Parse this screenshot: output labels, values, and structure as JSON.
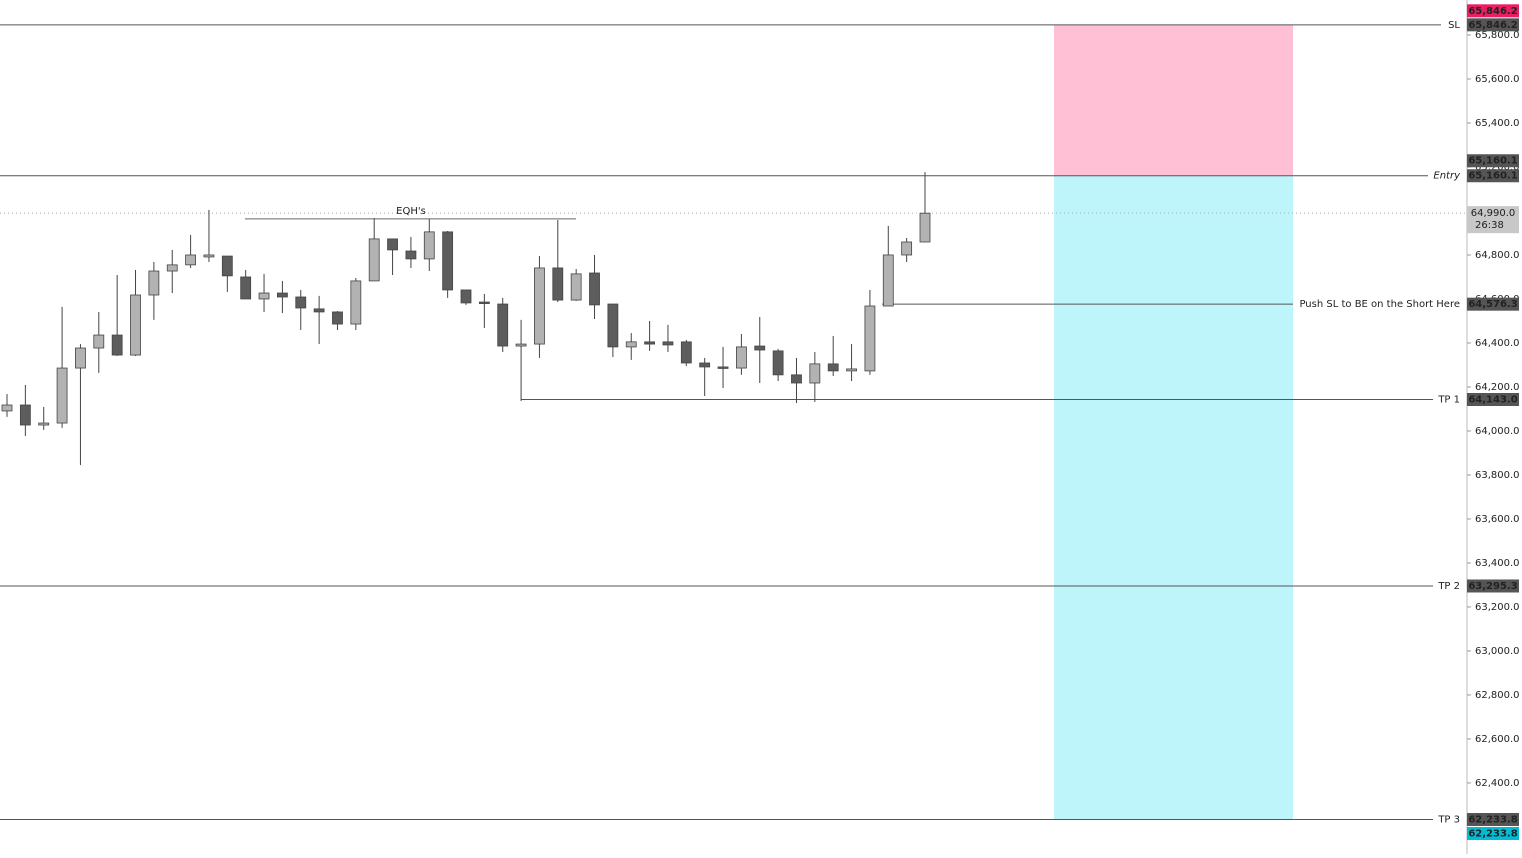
{
  "chart_data": {
    "type": "candlestick",
    "ylim": [
      62077,
      65959
    ],
    "yticks": [
      {
        "value": 62400,
        "label": "62,400.0"
      },
      {
        "value": 62600,
        "label": "62,600.0"
      },
      {
        "value": 62800,
        "label": "62,800.0"
      },
      {
        "value": 63000,
        "label": "63,000.0"
      },
      {
        "value": 63200,
        "label": "63,200.0"
      },
      {
        "value": 63400,
        "label": "63,400.0"
      },
      {
        "value": 63600,
        "label": "63,600.0"
      },
      {
        "value": 63800,
        "label": "63,800.0"
      },
      {
        "value": 64000,
        "label": "64,000.0"
      },
      {
        "value": 64200,
        "label": "64,200.0"
      },
      {
        "value": 64400,
        "label": "64,400.0"
      },
      {
        "value": 64600,
        "label": "64,600.0"
      },
      {
        "value": 64800,
        "label": "64,800.0"
      },
      {
        "value": 65000,
        "label": "65,000.0"
      },
      {
        "value": 65200,
        "label": "65,200.0"
      },
      {
        "value": 65400,
        "label": "65,400.0"
      },
      {
        "value": 65600,
        "label": "65,600.0"
      },
      {
        "value": 65800,
        "label": "65,800.0"
      }
    ],
    "up_color": "#b2b2b2",
    "down_color": "#5d5d5d",
    "open": [
      64091,
      64118,
      64027,
      64036,
      64286,
      64377,
      64436,
      64345,
      64618,
      64727,
      64755,
      64791,
      64795,
      64700,
      64600,
      64627,
      64609,
      64555,
      64541,
      64486,
      64682,
      64873,
      64818,
      64782,
      64905,
      64641,
      64586,
      64577,
      64386,
      64395,
      64741,
      64595,
      64718,
      64577,
      64382,
      64405,
      64405,
      64405,
      64309,
      64291,
      64286,
      64386,
      64364,
      64255,
      64218,
      64305,
      64273,
      64273,
      64568,
      64800,
      64859
    ],
    "high": [
      64168,
      64209,
      64109,
      64564,
      64395,
      64541,
      64709,
      64732,
      64768,
      64823,
      64891,
      65005,
      64795,
      64732,
      64714,
      64682,
      64641,
      64614,
      64545,
      64695,
      64968,
      64873,
      64882,
      64964,
      64909,
      64641,
      64623,
      64605,
      64505,
      64795,
      64959,
      64736,
      64800,
      64577,
      64445,
      64500,
      64482,
      64414,
      64332,
      64382,
      64441,
      64518,
      64373,
      64332,
      64359,
      64432,
      64395,
      64641,
      64932,
      64877,
      65177
    ],
    "low": [
      64064,
      63977,
      64005,
      64014,
      63845,
      64264,
      64341,
      64341,
      64505,
      64627,
      64741,
      64768,
      64632,
      64600,
      64541,
      64536,
      64459,
      64395,
      64459,
      64459,
      64682,
      64709,
      64741,
      64727,
      64605,
      64573,
      64468,
      64359,
      64136,
      64332,
      64586,
      64591,
      64509,
      64336,
      64323,
      64364,
      64359,
      64295,
      64159,
      64195,
      64255,
      64218,
      64227,
      64127,
      64132,
      64250,
      64227,
      64255,
      64568,
      64768,
      64859
    ],
    "close": [
      64118,
      64027,
      64036,
      64286,
      64377,
      64436,
      64345,
      64618,
      64727,
      64755,
      64800,
      64800,
      64705,
      64600,
      64627,
      64609,
      64559,
      64541,
      64486,
      64682,
      64873,
      64823,
      64782,
      64905,
      64641,
      64582,
      64582,
      64386,
      64395,
      64741,
      64595,
      64714,
      64573,
      64382,
      64405,
      64395,
      64391,
      64309,
      64291,
      64286,
      64382,
      64368,
      64255,
      64218,
      64305,
      64273,
      64282,
      64568,
      64800,
      64859,
      64990
    ],
    "levels": [
      {
        "name": "SL",
        "value": 65846.2,
        "value_label": "65,846.2"
      },
      {
        "name": "Entry",
        "value": 65160.1,
        "value_label": "65,160.1"
      },
      {
        "name": "Push SL to BE on the Short Here",
        "value": 64576.3,
        "value_label": "64,576.3"
      },
      {
        "name": "TP 1",
        "value": 64143.0,
        "value_label": "64,143.0"
      },
      {
        "name": "TP 2",
        "value": 63295.3,
        "value_label": "63,295.3"
      },
      {
        "name": "TP 3",
        "value": 62233.8,
        "value_label": "62,233.8"
      }
    ],
    "current_price": {
      "value": 64990.0,
      "label": "64,990.0",
      "countdown": "26:38"
    },
    "annotations": [
      {
        "text": "EQH's",
        "value": 64964
      }
    ]
  }
}
